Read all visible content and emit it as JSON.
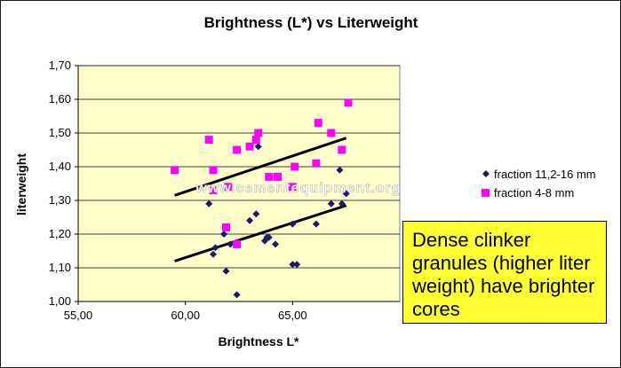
{
  "chart_data": {
    "type": "scatter",
    "title": "Brightness (L*) vs Literweight",
    "xlabel": "Brightness L*",
    "ylabel": "literweight",
    "xlim": [
      55,
      70
    ],
    "ylim": [
      1.0,
      1.7
    ],
    "x_ticks": [
      "55,00",
      "60,00",
      "65,00"
    ],
    "y_ticks": [
      "1,00",
      "1,10",
      "1,20",
      "1,30",
      "1,40",
      "1,50",
      "1,60",
      "1,70"
    ],
    "grid": "horizontal",
    "plot_background": "#ffffcc",
    "legend_position": "right",
    "series": [
      {
        "name": "fraction 11,2-16 mm",
        "marker": "diamond",
        "color": "#1a1a6e",
        "points": [
          [
            61.1,
            1.29
          ],
          [
            61.3,
            1.14
          ],
          [
            61.4,
            1.16
          ],
          [
            61.8,
            1.2
          ],
          [
            61.9,
            1.09
          ],
          [
            62.1,
            1.17
          ],
          [
            62.4,
            1.02
          ],
          [
            62.4,
            1.17
          ],
          [
            63.0,
            1.24
          ],
          [
            63.3,
            1.26
          ],
          [
            63.4,
            1.46
          ],
          [
            63.7,
            1.18
          ],
          [
            63.8,
            1.19
          ],
          [
            63.9,
            1.19
          ],
          [
            64.2,
            1.17
          ],
          [
            65.0,
            1.11
          ],
          [
            65.2,
            1.11
          ],
          [
            65.0,
            1.23
          ],
          [
            66.1,
            1.23
          ],
          [
            66.8,
            1.29
          ],
          [
            67.2,
            1.39
          ],
          [
            67.3,
            1.29
          ],
          [
            67.5,
            1.32
          ]
        ],
        "trendline": [
          [
            59.5,
            1.12
          ],
          [
            67.5,
            1.285
          ]
        ]
      },
      {
        "name": "fraction 4-8 mm",
        "marker": "square",
        "color": "#ff00ff",
        "points": [
          [
            59.5,
            1.39
          ],
          [
            61.1,
            1.48
          ],
          [
            61.3,
            1.39
          ],
          [
            61.3,
            1.33
          ],
          [
            61.9,
            1.22
          ],
          [
            62.0,
            1.34
          ],
          [
            62.4,
            1.45
          ],
          [
            62.4,
            1.17
          ],
          [
            63.0,
            1.46
          ],
          [
            63.3,
            1.48
          ],
          [
            63.4,
            1.5
          ],
          [
            63.9,
            1.37
          ],
          [
            64.3,
            1.37
          ],
          [
            64.3,
            1.37
          ],
          [
            65.0,
            1.34
          ],
          [
            65.1,
            1.4
          ],
          [
            66.1,
            1.41
          ],
          [
            66.2,
            1.53
          ],
          [
            66.8,
            1.5
          ],
          [
            67.3,
            1.45
          ],
          [
            67.6,
            1.59
          ]
        ],
        "trendline": [
          [
            59.5,
            1.315
          ],
          [
            67.5,
            1.485
          ]
        ]
      }
    ],
    "annotations": [
      "www.cementequipment.org"
    ]
  },
  "callout": {
    "text": "Dense clinker granules (higher liter weight) have brighter cores"
  }
}
